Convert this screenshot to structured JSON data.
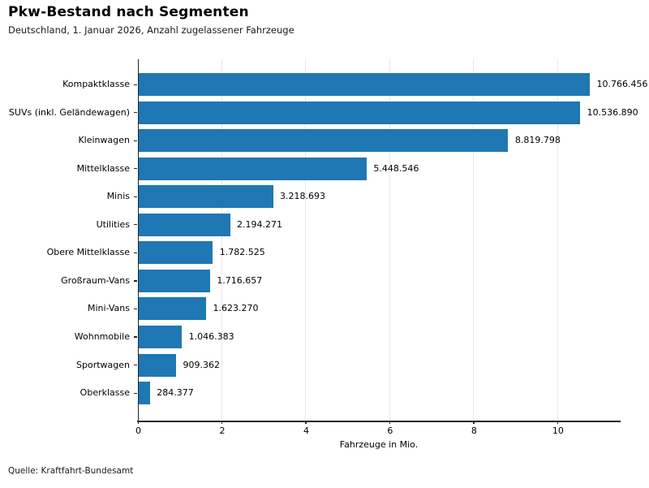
{
  "header": {
    "title": "Pkw-Bestand nach Segmenten",
    "subtitle": "Deutschland, 1. Januar 2026, Anzahl zugelassener Fahrzeuge"
  },
  "footer": {
    "source": "Quelle: Kraftfahrt-Bundesamt"
  },
  "chart_data": {
    "type": "bar",
    "orientation": "horizontal",
    "title": "Pkw-Bestand nach Segmenten",
    "subtitle": "Deutschland, 1. Januar 2026, Anzahl zugelassener Fahrzeuge",
    "categories": [
      "Kompaktklasse",
      "SUVs (inkl. Geländewagen)",
      "Kleinwagen",
      "Mittelklasse",
      "Minis",
      "Utilities",
      "Obere Mittelklasse",
      "Großraum-Vans",
      "Mini-Vans",
      "Wohnmobile",
      "Sportwagen",
      "Oberklasse"
    ],
    "values": [
      10766456,
      10536890,
      8819798,
      5448546,
      3218693,
      2194271,
      1782525,
      1716657,
      1623270,
      1046383,
      909362,
      284377
    ],
    "value_labels": [
      "10.766.456",
      "10.536.890",
      "8.819.798",
      "5.448.546",
      "3.218.693",
      "2.194.271",
      "1.782.525",
      "1.716.657",
      "1.623.270",
      "1.046.383",
      "909.362",
      "284.377"
    ],
    "xlabel": "Fahrzeuge in Mio.",
    "x_ticks": [
      0,
      2,
      4,
      6,
      8,
      10
    ],
    "x_tick_labels": [
      "0",
      "2",
      "4",
      "6",
      "8",
      "10"
    ],
    "xlim": [
      0,
      11.5
    ],
    "bar_color": "#1f77b4",
    "grid": "vertical-light",
    "gridline_color": "#e7e7e7",
    "legend": "none",
    "source": "Quelle: Kraftfahrt-Bundesamt"
  }
}
